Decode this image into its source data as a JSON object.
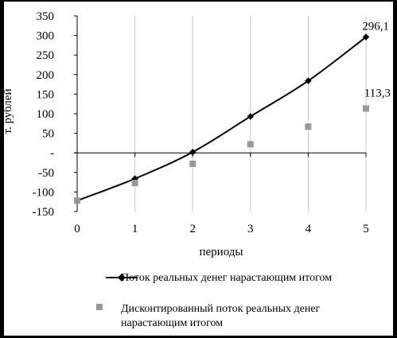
{
  "chart_data": {
    "type": "line",
    "xlabel": "периоды",
    "ylabel": "т. рублей",
    "xlim": [
      0,
      5
    ],
    "ylim": [
      -150,
      350
    ],
    "x_ticks": [
      0,
      1,
      2,
      3,
      4,
      5
    ],
    "y_ticks": [
      {
        "value": 350,
        "label": "350"
      },
      {
        "value": 300,
        "label": "300"
      },
      {
        "value": 250,
        "label": "250"
      },
      {
        "value": 200,
        "label": "200"
      },
      {
        "value": 150,
        "label": "150"
      },
      {
        "value": 100,
        "label": "100"
      },
      {
        "value": 50,
        "label": "50"
      },
      {
        "value": 0,
        "label": "-"
      },
      {
        "value": -50,
        "label": "-50"
      },
      {
        "value": -100,
        "label": "-100"
      },
      {
        "value": -150,
        "label": "-150"
      }
    ],
    "grid": "vertical",
    "legend_position": "bottom",
    "series": [
      {
        "name": "Поток реальных денег нарастающим итогом",
        "style": "line-with-diamond-markers",
        "color": "#000000",
        "x": [
          0,
          1,
          2,
          3,
          4,
          5
        ],
        "values": [
          -122,
          -66,
          2,
          93,
          184,
          296.1
        ],
        "end_label": "296,1"
      },
      {
        "name": "Дисконтированный поток реальных денег нарастающим итогом",
        "style": "square-markers",
        "color": "#999999",
        "x": [
          0,
          1,
          2,
          3,
          4,
          5
        ],
        "values": [
          -122,
          -77,
          -28,
          22,
          67,
          113.3
        ],
        "end_label": "113,3"
      }
    ]
  },
  "legend": {
    "item1": "Поток реальных денег нарастающим итогом",
    "item2_line1": "Дисконтированный поток реальных денег",
    "item2_line2": "нарастающим итогом"
  }
}
